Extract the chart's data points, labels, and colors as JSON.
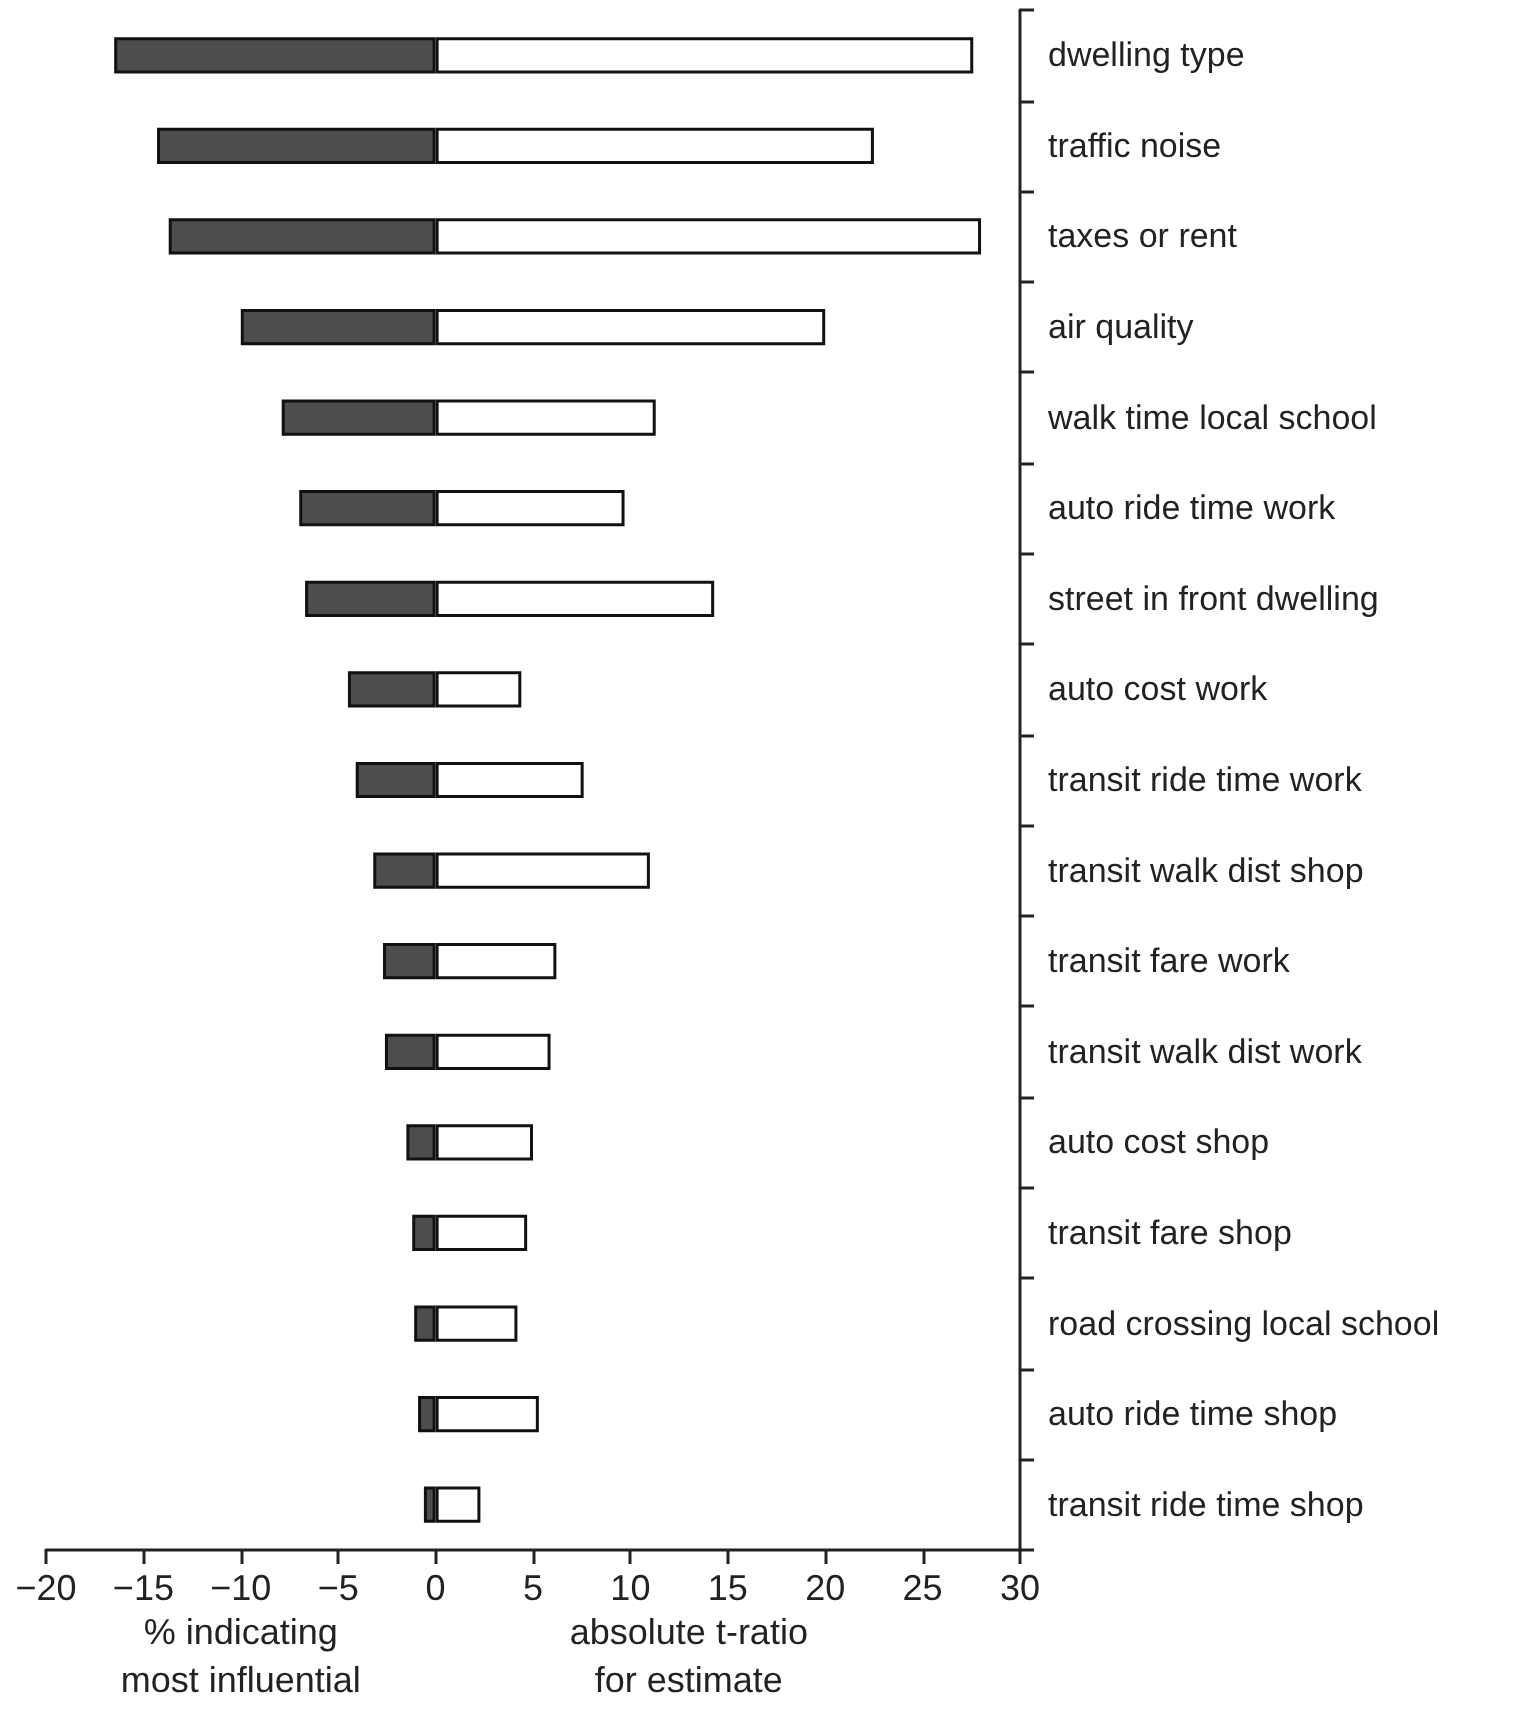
{
  "chart_data": {
    "type": "bar",
    "orientation": "horizontal",
    "categories": [
      "dwelling type",
      "traffic noise",
      "taxes or rent",
      "air quality",
      "walk time local school",
      "auto ride time work",
      "street in front dwelling",
      "auto cost work",
      "transit ride time work",
      "transit walk dist shop",
      "transit fare work",
      "transit walk dist work",
      "auto cost shop",
      "transit fare shop",
      "road crossing local school",
      "auto ride time shop",
      "transit ride time shop"
    ],
    "series": [
      {
        "color": "#4d4d4d",
        "values": [
          -16.5,
          -14.3,
          -13.7,
          -10.0,
          -7.9,
          -7.0,
          -6.7,
          -4.5,
          -4.1,
          -3.2,
          -2.7,
          -2.6,
          -1.5,
          -1.2,
          -1.1,
          -0.9,
          -0.6
        ]
      },
      {
        "color": "#ffffff",
        "values": [
          27.6,
          22.5,
          28.0,
          20.0,
          11.3,
          9.7,
          14.3,
          4.4,
          7.6,
          11.0,
          6.2,
          5.9,
          5.0,
          4.7,
          4.2,
          5.3,
          2.3
        ]
      }
    ],
    "xlim": [
      -20,
      30
    ],
    "xticks": [
      {
        "value": -20,
        "label": "−20"
      },
      {
        "value": -15,
        "label": "−15"
      },
      {
        "value": -10,
        "label": "−10"
      },
      {
        "value": -5,
        "label": "−5"
      },
      0,
      5,
      10,
      15,
      20,
      25,
      30
    ],
    "xlabel": "absolute t-ratio\nfor estimate",
    "annotations": [
      "% indicating\nmost influential"
    ],
    "stacked": true,
    "grid": false
  }
}
